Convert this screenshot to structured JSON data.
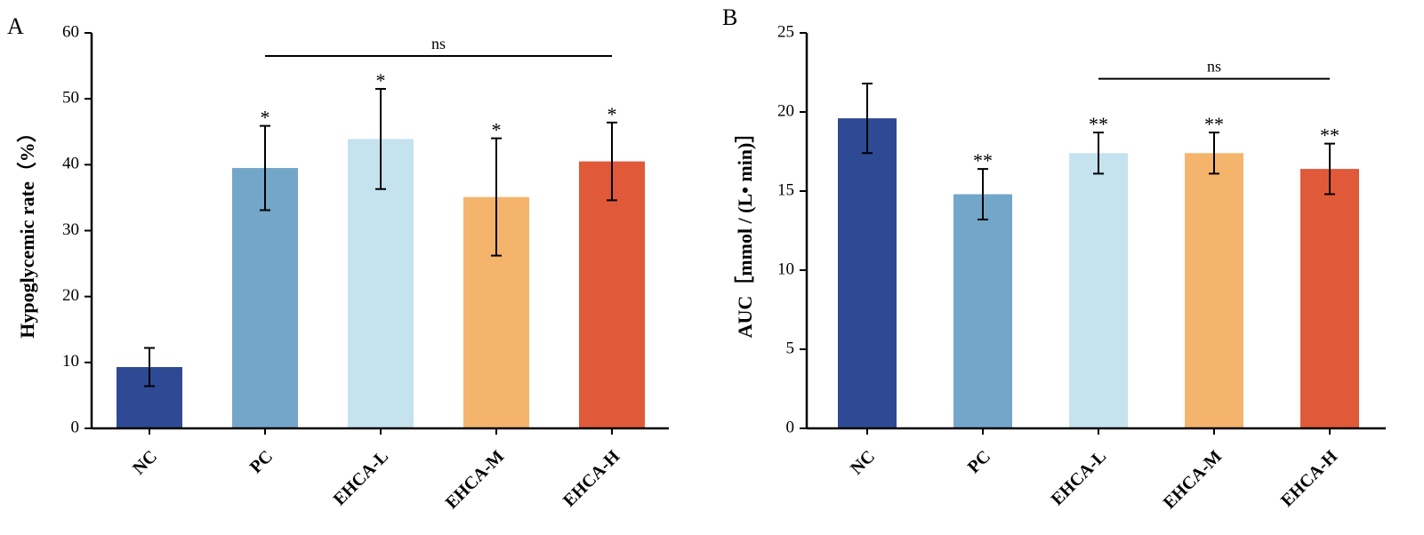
{
  "chart_data": [
    {
      "type": "bar",
      "panel_label": "A",
      "title": "",
      "xlabel": "",
      "ylabel": "Hypoglycemic rate（%）",
      "ylim": [
        0,
        60
      ],
      "yticks": [
        0,
        10,
        20,
        30,
        40,
        50,
        60
      ],
      "categories": [
        "NC",
        "PC",
        "EHCA-L",
        "EHCA-M",
        "EHCA-H"
      ],
      "values": [
        9.3,
        39.5,
        43.9,
        35.1,
        40.5
      ],
      "errors": [
        2.9,
        6.4,
        7.6,
        8.9,
        5.9
      ],
      "colors": [
        "#2f4a94",
        "#73a6c8",
        "#c4e3ee",
        "#f5b46c",
        "#e05a3a"
      ],
      "significance": [
        "",
        "*",
        "*",
        "*",
        "*"
      ],
      "bracket": {
        "from": 1,
        "to": 4,
        "label": "ns",
        "y": 56.5
      }
    },
    {
      "type": "bar",
      "panel_label": "B",
      "title": "",
      "xlabel": "",
      "ylabel": "AUC［mmol / (L• min)］",
      "ylim": [
        0,
        25
      ],
      "yticks": [
        0,
        5,
        10,
        15,
        20,
        25
      ],
      "categories": [
        "NC",
        "PC",
        "EHCA-L",
        "EHCA-M",
        "EHCA-H"
      ],
      "values": [
        19.6,
        14.8,
        17.4,
        17.4,
        16.4
      ],
      "errors": [
        2.2,
        1.6,
        1.3,
        1.3,
        1.6
      ],
      "colors": [
        "#2f4a94",
        "#73a6c8",
        "#c4e3ee",
        "#f5b46c",
        "#e05a3a"
      ],
      "significance": [
        "",
        "**",
        "**",
        "**",
        "**"
      ],
      "bracket": {
        "from": 2,
        "to": 4,
        "label": "ns",
        "y": 22.1
      }
    }
  ]
}
